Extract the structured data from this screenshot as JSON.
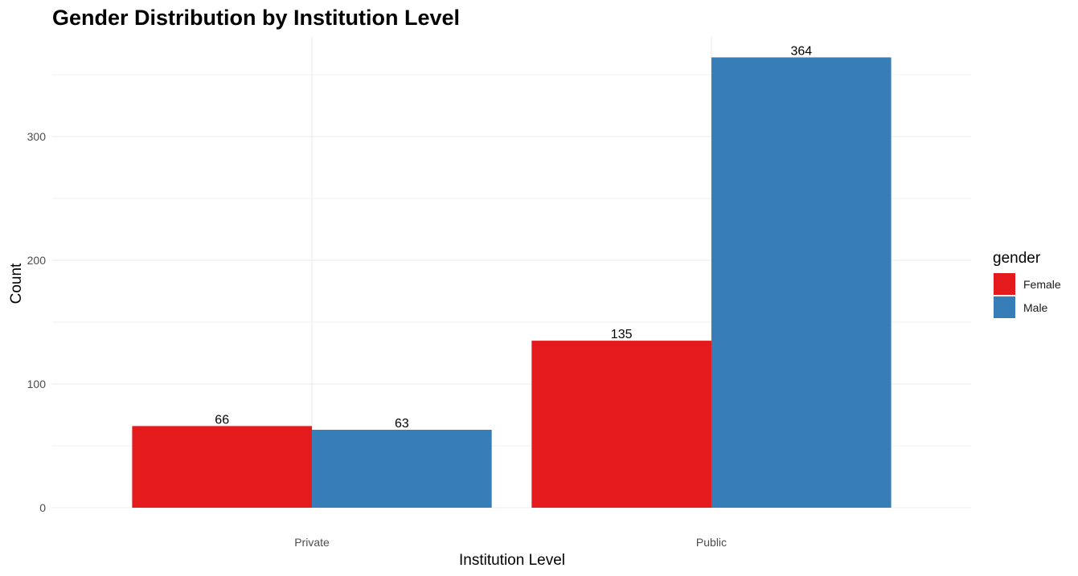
{
  "chart_data": {
    "type": "bar",
    "title": "Gender Distribution by Institution Level",
    "xlabel": "Institution Level",
    "ylabel": "Count",
    "categories": [
      "Private",
      "Public"
    ],
    "series": [
      {
        "name": "Female",
        "values": [
          66,
          135
        ],
        "color": "#E41A1C"
      },
      {
        "name": "Male",
        "values": [
          63,
          364
        ],
        "color": "#377EB8"
      }
    ],
    "ylim": [
      0,
      396
    ],
    "yticks": [
      0,
      100,
      200,
      300
    ],
    "yticks_labels": [
      "0",
      "100",
      "200",
      "300"
    ],
    "legend": {
      "title": "gender",
      "position": "right"
    },
    "grid": true
  }
}
